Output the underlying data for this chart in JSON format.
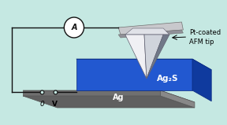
{
  "bg_color": "#c5e8e2",
  "ag_plate_top": "#8a8a8a",
  "ag_plate_front": "#707070",
  "ag_plate_right": "#888888",
  "ag_plate_bottom": "#606060",
  "ag2s_top": "#1a4fc4",
  "ag2s_front": "#2258d0",
  "ag2s_right": "#0f3a9e",
  "tip_left_light": "#e8e8ec",
  "tip_right_dark": "#8090a0",
  "tip_center": "#c0c8d4",
  "cantilever_top": "#c8c8cc",
  "cantilever_bot": "#909098",
  "wire_color": "#111111",
  "ammeter_bg": "#ffffff",
  "label_ag2s": "Ag₂S",
  "label_ag": "Ag",
  "label_tip_line1": "Pt-coated",
  "label_tip_line2": "AFM tip",
  "label_0": "0",
  "label_v": "V"
}
